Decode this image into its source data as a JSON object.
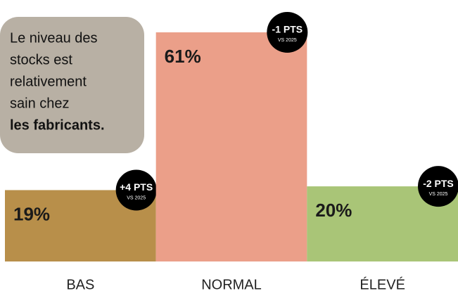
{
  "chart_data": {
    "type": "bar",
    "categories": [
      "BAS",
      "NORMAL",
      "ÉLEVÉ"
    ],
    "values": [
      19,
      61,
      20
    ],
    "value_labels": [
      "19%",
      "61%",
      "20%"
    ],
    "colors": [
      "#b88f4a",
      "#eb9f89",
      "#a9c577"
    ],
    "change_labels": [
      "+4 PTS",
      "-1 PTS",
      "-2 PTS"
    ],
    "comparison": "VS 2025",
    "annotation": {
      "lines": [
        "Le niveau des",
        "stocks est",
        "relativement",
        "sain chez"
      ],
      "bold": "les fabricants."
    }
  }
}
